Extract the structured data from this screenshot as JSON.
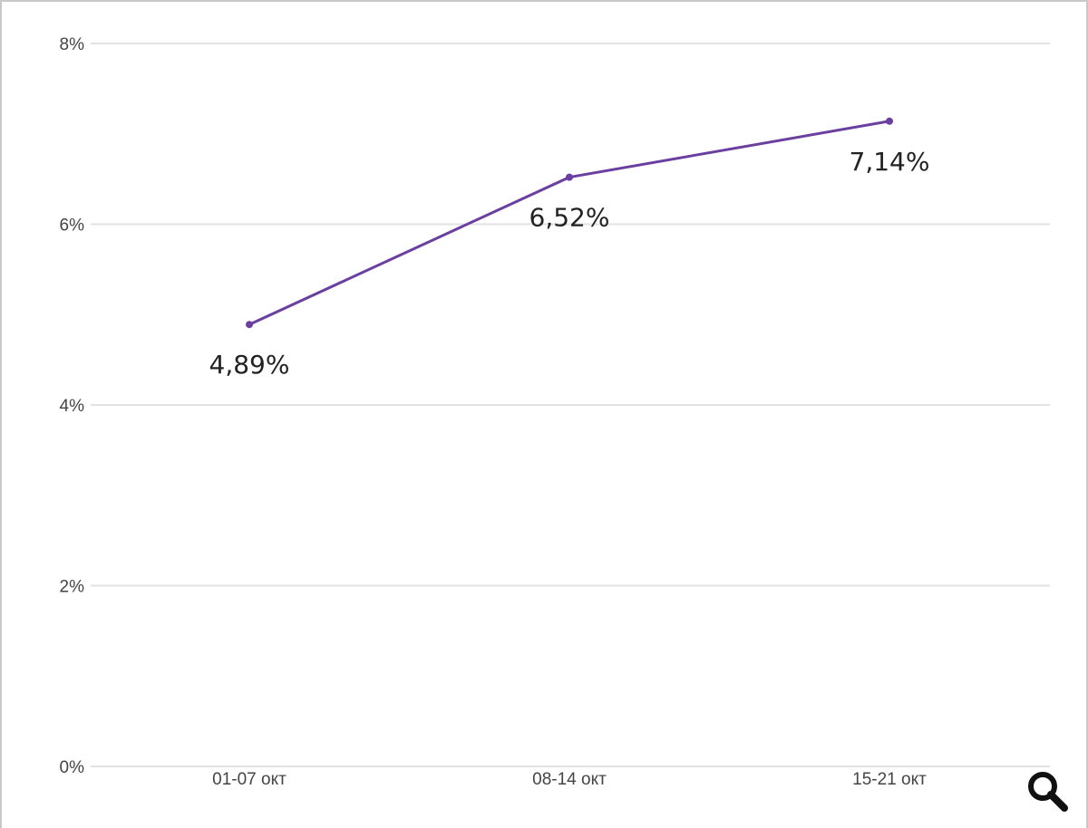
{
  "chart_data": {
    "type": "line",
    "categories": [
      "01-07 окт",
      "08-14 окт",
      "15-21 окт"
    ],
    "series": [
      {
        "values": [
          4.89,
          6.52,
          7.14
        ],
        "labels": [
          "4,89%",
          "6,52%",
          "7,14%"
        ],
        "color": "#6a3fa0"
      }
    ],
    "ylim": [
      0,
      8
    ],
    "yticks": [
      0,
      2,
      4,
      6,
      8
    ],
    "ytick_labels": [
      "0%",
      "2%",
      "4%",
      "6%",
      "8%"
    ],
    "grid": true,
    "legend": "none"
  },
  "toolbar": {
    "zoom_icon": "magnifier-icon"
  }
}
